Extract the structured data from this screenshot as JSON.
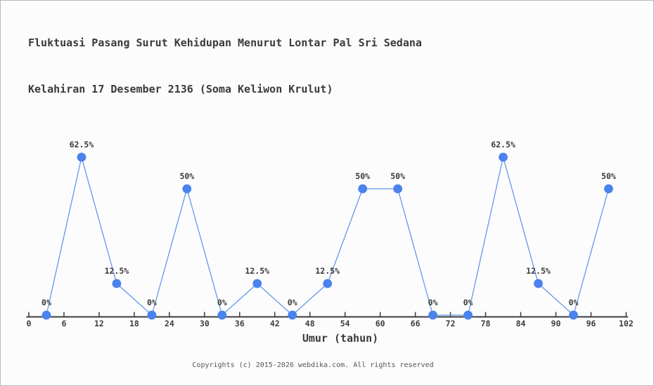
{
  "header": {
    "title_line1": "Fluktuasi Pasang Surut Kehidupan Menurut Lontar Pal Sri Sedana",
    "title_line2": "Kelahiran 17 Desember 2136 (Soma Keliwon Krulut)"
  },
  "footer": {
    "copyright": "Copyrights (c) 2015-2026 webdika.com. All rights reserved"
  },
  "chart_data": {
    "type": "line",
    "title": "Fluktuasi Pasang Surut Kehidupan Menurut Lontar Pal Sri Sedana Kelahiran 17 Desember 2136 (Soma Keliwon Krulut)",
    "xlabel": "Umur (tahun)",
    "ylabel": "",
    "x": [
      3,
      9,
      15,
      21,
      27,
      33,
      39,
      45,
      51,
      57,
      63,
      69,
      75,
      81,
      87,
      93,
      99
    ],
    "values": [
      0,
      62.5,
      12.5,
      0,
      50,
      0,
      12.5,
      0,
      12.5,
      50,
      50,
      0,
      0,
      62.5,
      12.5,
      0,
      50
    ],
    "point_labels": [
      "0%",
      "62.5%",
      "12.5%",
      "0%",
      "50%",
      "0%",
      "12.5%",
      "0%",
      "12.5%",
      "50%",
      "50%",
      "0%",
      "0%",
      "62.5%",
      "12.5%",
      "0%",
      "50%"
    ],
    "x_ticks": [
      0,
      6,
      12,
      18,
      24,
      30,
      36,
      42,
      48,
      54,
      60,
      66,
      72,
      78,
      84,
      90,
      96,
      102
    ],
    "xlim": [
      0,
      102
    ],
    "ylim": [
      0,
      62.5
    ],
    "grid": false,
    "legend": null,
    "colors": {
      "marker": "#4a82ee",
      "line": "#6397ef",
      "axis": "#3d3d3d",
      "text": "#3a3a3a",
      "footer_text": "#555555"
    }
  }
}
